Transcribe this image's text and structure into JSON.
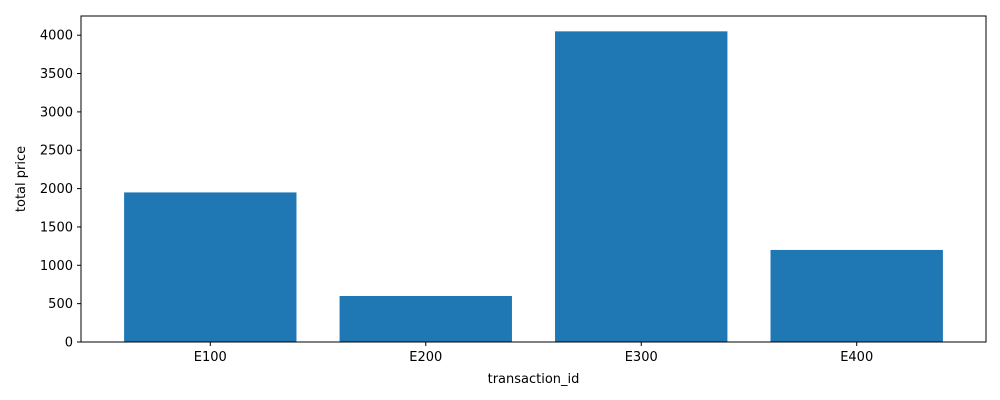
{
  "chart_data": {
    "type": "bar",
    "title": "",
    "xlabel": "transaction_id",
    "ylabel": "total price",
    "categories": [
      "E100",
      "E200",
      "E300",
      "E400"
    ],
    "values": [
      1950,
      600,
      4050,
      1200
    ],
    "ylim": [
      0,
      4250
    ],
    "yticks": [
      0,
      500,
      1000,
      1500,
      2000,
      2500,
      3000,
      3500,
      4000
    ],
    "ytick_labels": [
      "0",
      "500",
      "1000",
      "1500",
      "2000",
      "2500",
      "3000",
      "3500",
      "4000"
    ],
    "bar_color": "#1f77b4",
    "grid": false,
    "legend": "none"
  }
}
